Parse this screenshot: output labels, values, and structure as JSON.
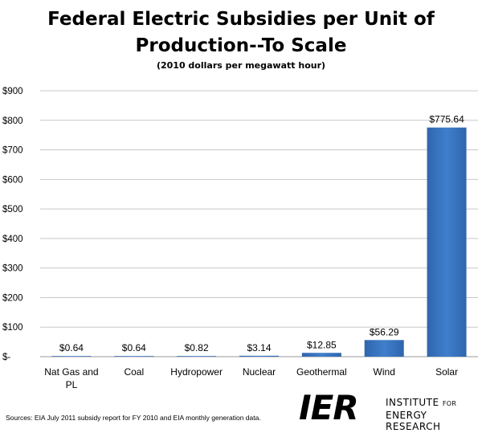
{
  "chart_data": {
    "type": "bar",
    "title_lines": [
      "Federal Electric Subsidies per Unit of",
      "Production--To Scale"
    ],
    "subtitle": "(2010 dollars per megawatt hour)",
    "categories": [
      "Nat Gas and PL",
      "Coal",
      "Hydropower",
      "Nuclear",
      "Geothermal",
      "Wind",
      "Solar"
    ],
    "category_label_lines": [
      [
        "Nat Gas and",
        "PL"
      ],
      [
        "Coal"
      ],
      [
        "Hydropower"
      ],
      [
        "Nuclear"
      ],
      [
        "Geothermal"
      ],
      [
        "Wind"
      ],
      [
        "Solar"
      ]
    ],
    "values": [
      0.64,
      0.64,
      0.82,
      3.14,
      12.85,
      56.29,
      775.64
    ],
    "data_labels": [
      "$0.64",
      "$0.64",
      "$0.82",
      "$3.14",
      "$12.85",
      "$56.29",
      "$775.64"
    ],
    "y_ticks": [
      0,
      100,
      200,
      300,
      400,
      500,
      600,
      700,
      800,
      900
    ],
    "y_tick_labels": [
      "$-",
      "$100",
      "$200",
      "$300",
      "$400",
      "$500",
      "$600",
      "$700",
      "$800",
      "$900"
    ],
    "ylim": [
      0,
      900
    ],
    "xlabel": "",
    "ylabel": "",
    "grid": true,
    "legend": "none",
    "bar_color": "#3f7fcc",
    "bar_color_dark": "#2f65ad"
  },
  "footnote": "Sources: EIA July 2011 subsidy report for FY 2010 and EIA monthly generation data.",
  "logo": {
    "mark": "IER",
    "line1_a": "INSTITUTE",
    "line1_b": "FOR",
    "line2": "ENERGY RESEARCH"
  }
}
